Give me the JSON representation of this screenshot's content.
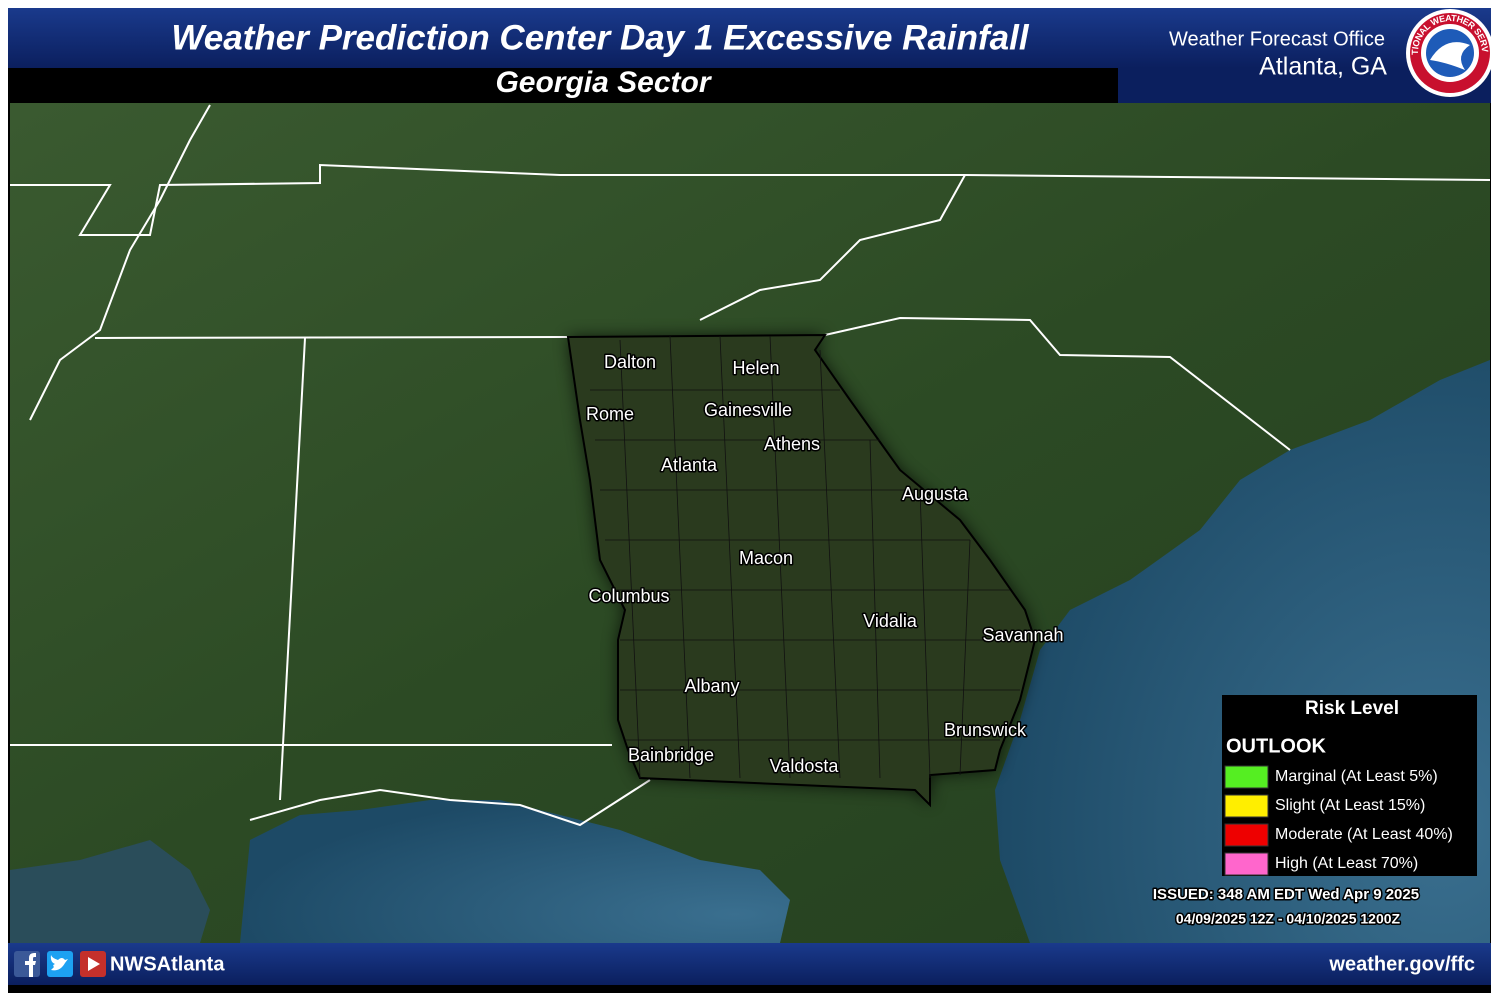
{
  "header": {
    "title": "Weather Prediction Center Day 1 Excessive Rainfall",
    "subtitle": "Georgia Sector",
    "office": "Weather Forecast Office",
    "location": "Atlanta, GA",
    "logo_text": "NATIONAL WEATHER SERVICE"
  },
  "map": {
    "cities": [
      "Dalton",
      "Helen",
      "Rome",
      "Gainesville",
      "Athens",
      "Atlanta",
      "Augusta",
      "Macon",
      "Columbus",
      "Vidalia",
      "Savannah",
      "Albany",
      "Brunswick",
      "Bainbridge",
      "Valdosta"
    ]
  },
  "legend": {
    "title": "Risk Level",
    "section": "OUTLOOK",
    "items": [
      {
        "label": "Marginal (At Least 5%)",
        "color": "#55ee22"
      },
      {
        "label": "Slight (At Least 15%)",
        "color": "#ffee00"
      },
      {
        "label": "Moderate (At Least 40%)",
        "color": "#ee0000"
      },
      {
        "label": "High (At Least 70%)",
        "color": "#ff66cc"
      }
    ]
  },
  "issued": {
    "line1": "ISSUED: 348 AM EDT Wed Apr 9 2025",
    "line2": "04/09/2025 12Z - 04/10/2025 1200Z"
  },
  "footer": {
    "social": "NWSAtlanta",
    "url": "weather.gov/ffc"
  }
}
